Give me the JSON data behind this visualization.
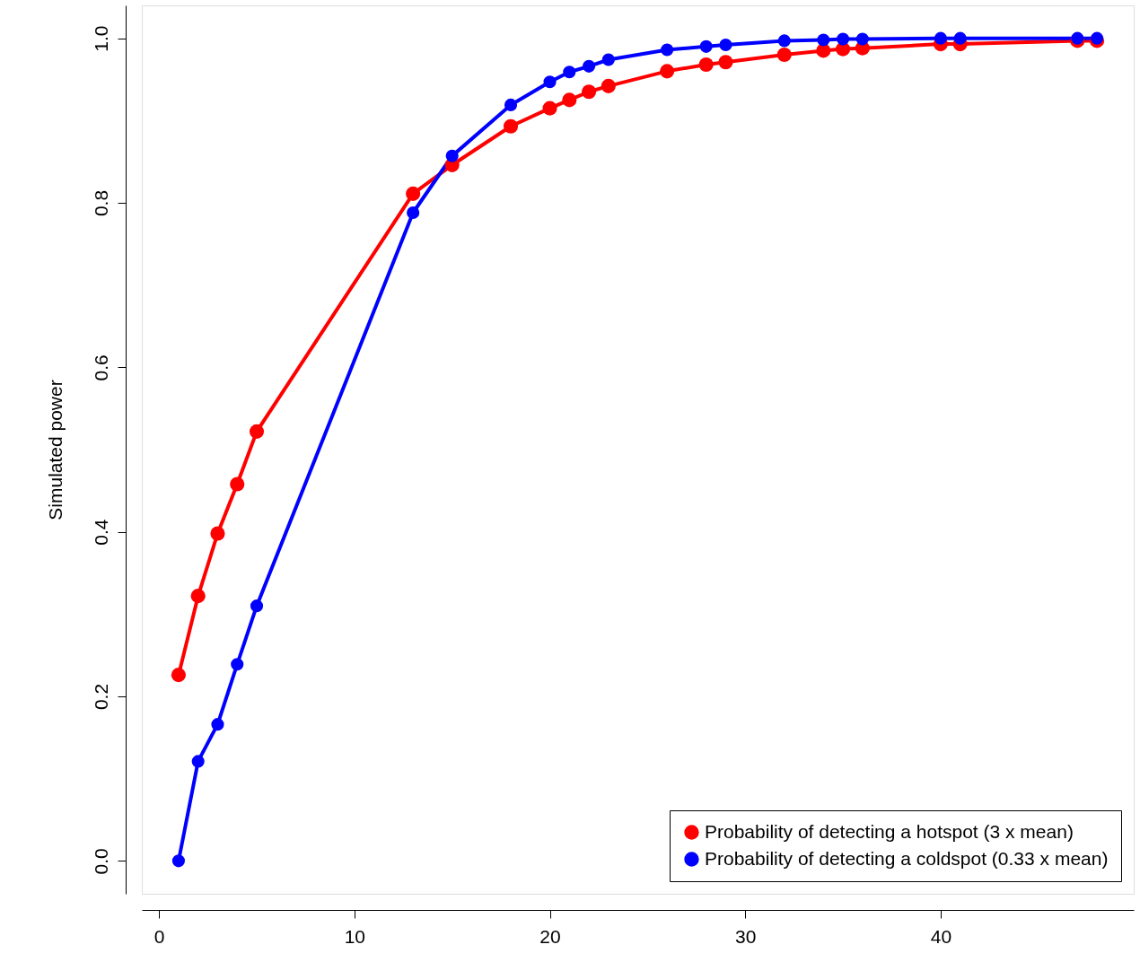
{
  "chart_data": {
    "type": "line",
    "ylabel": "Simulated power",
    "x": [
      1,
      2,
      3,
      4,
      5,
      13,
      15,
      18,
      20,
      21,
      22,
      23,
      26,
      28,
      29,
      32,
      34,
      35,
      36,
      40,
      41,
      47,
      48
    ],
    "series": [
      {
        "name": "Probability of detecting a hotspot (3 x mean)",
        "color": "#ff0000",
        "values": [
          0.226,
          0.322,
          0.398,
          0.458,
          0.522,
          0.811,
          0.846,
          0.893,
          0.915,
          0.925,
          0.935,
          0.942,
          0.96,
          0.968,
          0.971,
          0.98,
          0.985,
          0.987,
          0.988,
          0.993,
          0.993,
          0.997,
          0.997
        ]
      },
      {
        "name": "Probability of detecting a coldspot (0.33 x mean)",
        "color": "#0000ff",
        "values": [
          0.0,
          0.121,
          0.166,
          0.239,
          0.31,
          0.788,
          0.857,
          0.919,
          0.947,
          0.959,
          0.966,
          0.974,
          0.986,
          0.99,
          0.992,
          0.997,
          0.998,
          0.999,
          0.999,
          1.0,
          1.0,
          1.0,
          1.0
        ]
      }
    ],
    "xlim": [
      -0.88,
      49.88
    ],
    "xticks": [
      0,
      10,
      20,
      30,
      40
    ],
    "ylim": [
      -0.04,
      1.04
    ],
    "yticks": [
      {
        "value": 0,
        "label": "0.0"
      },
      0.2,
      0.4,
      0.6,
      0.8,
      {
        "value": 1,
        "label": "1.0"
      }
    ],
    "marker": "circle",
    "line_style": "solid",
    "grid": false,
    "legend": "bottom right"
  }
}
